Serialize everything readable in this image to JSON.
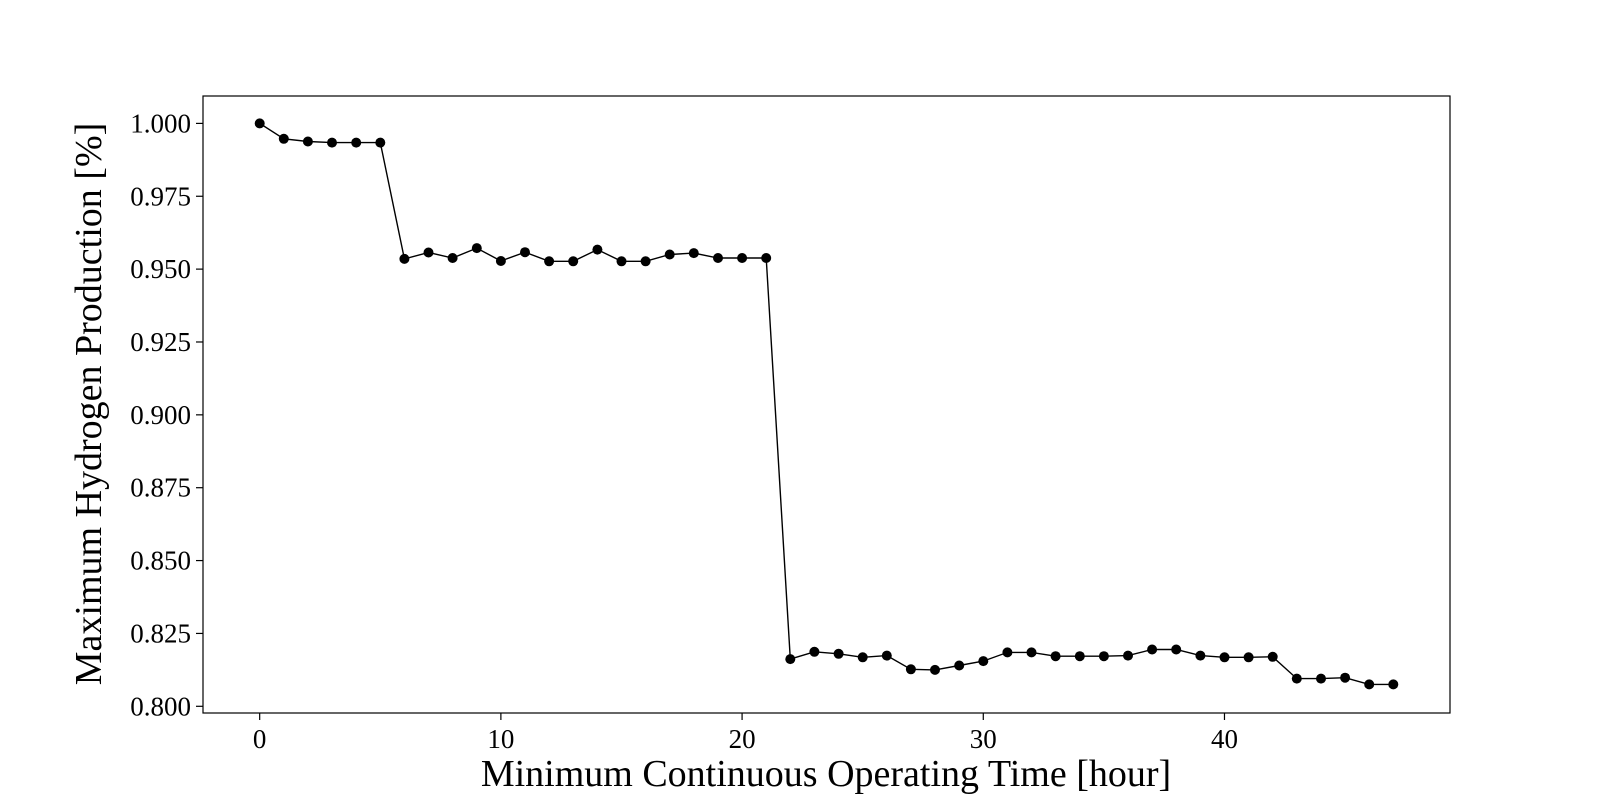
{
  "chart_data": {
    "type": "line",
    "xlabel": "Minimum Continuous Operating Time [hour]",
    "ylabel": "Maximum Hydrogen Production [%]",
    "xlim": [
      -2.35,
      49.35
    ],
    "ylim": [
      0.7977,
      1.0094
    ],
    "xticks": [
      0,
      10,
      20,
      30,
      40
    ],
    "yticks": [
      0.8,
      0.825,
      0.85,
      0.875,
      0.9,
      0.925,
      0.95,
      0.975,
      1.0
    ],
    "ytick_labels": [
      "0.800",
      "0.825",
      "0.850",
      "0.875",
      "0.900",
      "0.925",
      "0.950",
      "0.975",
      "1.000"
    ],
    "grid": false,
    "legend": "none",
    "marker": "circle",
    "line_color": "#000000",
    "x": [
      0,
      1,
      2,
      3,
      4,
      5,
      6,
      7,
      8,
      9,
      10,
      11,
      12,
      13,
      14,
      15,
      16,
      17,
      18,
      19,
      20,
      21,
      22,
      23,
      24,
      25,
      26,
      27,
      28,
      29,
      30,
      31,
      32,
      33,
      34,
      35,
      36,
      37,
      38,
      39,
      40,
      41,
      42,
      43,
      44,
      45,
      46,
      47
    ],
    "values": [
      1.0,
      0.9947,
      0.9938,
      0.9934,
      0.9934,
      0.9934,
      0.9535,
      0.9557,
      0.9538,
      0.9572,
      0.9528,
      0.9558,
      0.9527,
      0.9527,
      0.9567,
      0.9527,
      0.9527,
      0.955,
      0.9555,
      0.9538,
      0.9538,
      0.9538,
      0.8162,
      0.8187,
      0.818,
      0.8168,
      0.8174,
      0.8127,
      0.8125,
      0.814,
      0.8155,
      0.8185,
      0.8185,
      0.8172,
      0.8172,
      0.8172,
      0.8174,
      0.8195,
      0.8195,
      0.8174,
      0.8168,
      0.8168,
      0.817,
      0.8095,
      0.8095,
      0.8098,
      0.8075,
      0.8075
    ]
  }
}
